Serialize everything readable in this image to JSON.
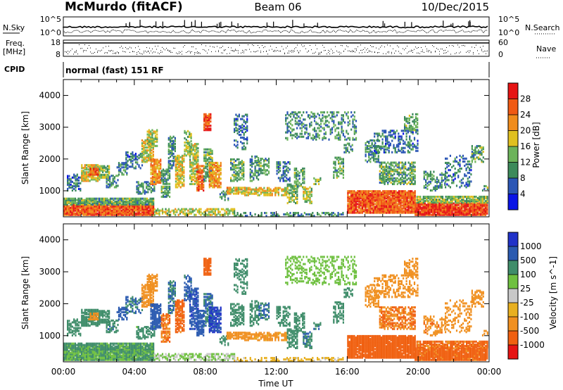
{
  "header": {
    "station": "McMurdo (fitACF)",
    "beam": "Beam 06",
    "date": "10/Dec/2015"
  },
  "top_panels": {
    "nsky_label": "N.Sky",
    "nsky_ticks": [
      "10^5",
      "10^0"
    ],
    "nsearch_label": "N.Search",
    "nsearch_ticks": [
      "10^5",
      "10^0"
    ],
    "freq_label_1": "Freq.",
    "freq_label_2": "[MHz]",
    "freq_ticks": [
      "18",
      "8"
    ],
    "nave_label": "Nave",
    "nave_ticks": [
      "60",
      "0"
    ],
    "cpid_label": "CPID",
    "cpid_text": "normal (fast) 151 RF"
  },
  "colors": {
    "power": [
      "#0a14e6",
      "#2b56b5",
      "#3c8a5a",
      "#6cb35a",
      "#e0c020",
      "#f08c1c",
      "#f05a14",
      "#e61414"
    ],
    "velocity": [
      "#2032c8",
      "#2a5ab0",
      "#3f8d6a",
      "#6fc040",
      "#c8c8c8",
      "#e8b020",
      "#f09020",
      "#f06010",
      "#e61414"
    ]
  },
  "chart_data": [
    {
      "type": "heatmap",
      "title": "Power",
      "xlabel": "",
      "ylabel": "Slant Range [km]",
      "x_ticks": [
        "00:00",
        "04:00",
        "08:00",
        "12:00",
        "16:00",
        "20:00",
        "00:00"
      ],
      "y_ticks": [
        1000,
        2000,
        3000,
        4000
      ],
      "ylim": [
        180,
        4500
      ],
      "colorbar_label": "Power [dB]",
      "colorbar_ticks": [
        4,
        8,
        12,
        16,
        20,
        24,
        28
      ],
      "colorbar_range": [
        0,
        32
      ]
    },
    {
      "type": "heatmap",
      "title": "Velocity",
      "xlabel": "Time UT",
      "ylabel": "Slant Range [km]",
      "x_ticks": [
        "00:00",
        "04:00",
        "08:00",
        "12:00",
        "16:00",
        "20:00",
        "00:00"
      ],
      "y_ticks": [
        1000,
        2000,
        3000,
        4000
      ],
      "ylim": [
        180,
        4500
      ],
      "colorbar_label": "Velocity [m s^-1]",
      "colorbar_ticks": [
        "1000",
        "500",
        "100",
        "25",
        "-25",
        "-100",
        "-500",
        "-1000"
      ]
    }
  ]
}
